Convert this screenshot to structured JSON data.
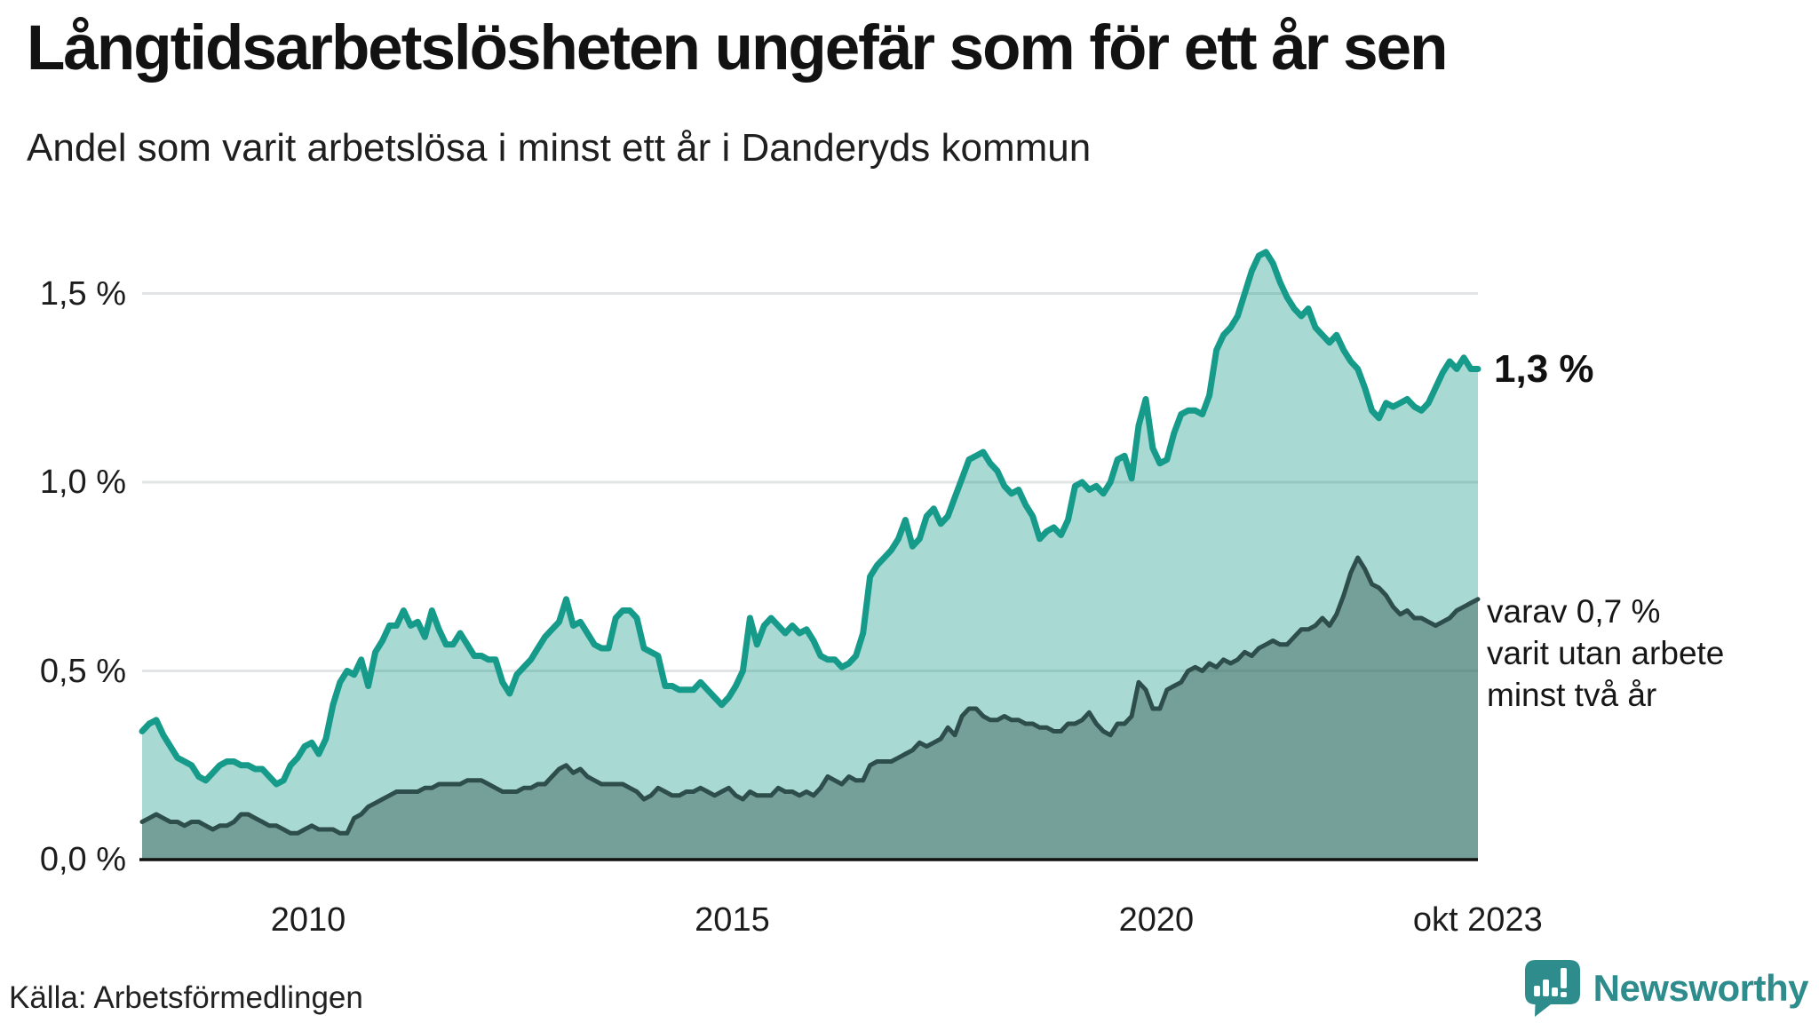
{
  "header": {
    "title": "Långtidsarbetslösheten ungefär som för ett år sen",
    "subtitle": "Andel som varit arbetslösa i minst ett år i Danderyds kommun"
  },
  "annotations": {
    "end_value_primary": "1,3 %",
    "secondary_lines": [
      "varav 0,7 %",
      "varit utan arbete",
      "minst två år"
    ]
  },
  "footer": {
    "source": "Källa: Arbetsförmedlingen"
  },
  "brand": {
    "name": "Newsworthy",
    "color": "#2E8C8C",
    "icon": "speech-bubble-bar-chart-icon"
  },
  "colors": {
    "line_one_year": "#169B8B",
    "fill_one_year": "rgba(26,154,138,0.38)",
    "line_two_year": "#2E4E4B",
    "fill_two_year": "rgba(47,79,75,0.42)",
    "gridline": "#E2E4E6",
    "axis": "#111111",
    "text": "#1c1c1c"
  },
  "chart_data": {
    "type": "area",
    "title": "Långtidsarbetslösheten ungefär som för ett år sen",
    "subtitle": "Andel som varit arbetslösa i minst ett år i Danderyds kommun",
    "unit": "%",
    "x_start": "2008-01",
    "x_end": "2023-10",
    "points_per_year": 12,
    "ylim": [
      0,
      1.7
    ],
    "grid_values": [
      0.5,
      1.0,
      1.5
    ],
    "y_ticks": [
      {
        "label": "1,5 %",
        "value": 1.5
      },
      {
        "label": "1,0 %",
        "value": 1.0
      },
      {
        "label": "0,5 %",
        "value": 0.5
      },
      {
        "label": "0,0 %",
        "value": 0.0
      }
    ],
    "x_ticks": [
      {
        "label": "2010",
        "year": 2010.0
      },
      {
        "label": "2015",
        "year": 2015.0
      },
      {
        "label": "2020",
        "year": 2020.0
      },
      {
        "label": "okt 2023",
        "year": 2023.79
      }
    ],
    "series": [
      {
        "name": "Arbetslösa minst ett år",
        "end_label": "1,3 %",
        "end_value": 1.3,
        "values": [
          0.34,
          0.36,
          0.37,
          0.33,
          0.3,
          0.27,
          0.26,
          0.25,
          0.22,
          0.21,
          0.23,
          0.25,
          0.26,
          0.26,
          0.25,
          0.25,
          0.24,
          0.24,
          0.22,
          0.2,
          0.21,
          0.25,
          0.27,
          0.3,
          0.31,
          0.28,
          0.32,
          0.41,
          0.47,
          0.5,
          0.49,
          0.53,
          0.46,
          0.55,
          0.58,
          0.62,
          0.62,
          0.66,
          0.62,
          0.63,
          0.59,
          0.66,
          0.61,
          0.57,
          0.57,
          0.6,
          0.57,
          0.54,
          0.54,
          0.53,
          0.53,
          0.47,
          0.44,
          0.49,
          0.51,
          0.53,
          0.56,
          0.59,
          0.61,
          0.63,
          0.69,
          0.62,
          0.63,
          0.6,
          0.57,
          0.56,
          0.56,
          0.64,
          0.66,
          0.66,
          0.64,
          0.56,
          0.55,
          0.54,
          0.46,
          0.46,
          0.45,
          0.45,
          0.45,
          0.47,
          0.45,
          0.43,
          0.41,
          0.43,
          0.46,
          0.5,
          0.64,
          0.57,
          0.62,
          0.64,
          0.62,
          0.6,
          0.62,
          0.6,
          0.61,
          0.58,
          0.54,
          0.53,
          0.53,
          0.51,
          0.52,
          0.54,
          0.6,
          0.75,
          0.78,
          0.8,
          0.82,
          0.85,
          0.9,
          0.83,
          0.85,
          0.91,
          0.93,
          0.89,
          0.91,
          0.96,
          1.01,
          1.06,
          1.07,
          1.08,
          1.05,
          1.03,
          0.99,
          0.97,
          0.98,
          0.94,
          0.91,
          0.85,
          0.87,
          0.88,
          0.86,
          0.9,
          0.99,
          1.0,
          0.98,
          0.99,
          0.97,
          1.0,
          1.06,
          1.07,
          1.01,
          1.15,
          1.22,
          1.09,
          1.05,
          1.06,
          1.13,
          1.18,
          1.19,
          1.19,
          1.18,
          1.23,
          1.35,
          1.39,
          1.41,
          1.44,
          1.5,
          1.56,
          1.6,
          1.61,
          1.58,
          1.53,
          1.49,
          1.46,
          1.44,
          1.46,
          1.41,
          1.39,
          1.37,
          1.39,
          1.35,
          1.32,
          1.3,
          1.25,
          1.19,
          1.17,
          1.21,
          1.2,
          1.21,
          1.22,
          1.2,
          1.19,
          1.21,
          1.25,
          1.29,
          1.32,
          1.3,
          1.33,
          1.3,
          1.3
        ]
      },
      {
        "name": "Varav utan arbete minst två år",
        "end_label": "varav 0,7 % varit utan arbete minst två år",
        "end_value": 0.7,
        "values": [
          0.1,
          0.11,
          0.12,
          0.11,
          0.1,
          0.1,
          0.09,
          0.1,
          0.1,
          0.09,
          0.08,
          0.09,
          0.09,
          0.1,
          0.12,
          0.12,
          0.11,
          0.1,
          0.09,
          0.09,
          0.08,
          0.07,
          0.07,
          0.08,
          0.09,
          0.08,
          0.08,
          0.08,
          0.07,
          0.07,
          0.11,
          0.12,
          0.14,
          0.15,
          0.16,
          0.17,
          0.18,
          0.18,
          0.18,
          0.18,
          0.19,
          0.19,
          0.2,
          0.2,
          0.2,
          0.2,
          0.21,
          0.21,
          0.21,
          0.2,
          0.19,
          0.18,
          0.18,
          0.18,
          0.19,
          0.19,
          0.2,
          0.2,
          0.22,
          0.24,
          0.25,
          0.23,
          0.24,
          0.22,
          0.21,
          0.2,
          0.2,
          0.2,
          0.2,
          0.19,
          0.18,
          0.16,
          0.17,
          0.19,
          0.18,
          0.17,
          0.17,
          0.18,
          0.18,
          0.19,
          0.18,
          0.17,
          0.18,
          0.19,
          0.17,
          0.16,
          0.18,
          0.17,
          0.17,
          0.17,
          0.19,
          0.18,
          0.18,
          0.17,
          0.18,
          0.17,
          0.19,
          0.22,
          0.21,
          0.2,
          0.22,
          0.21,
          0.21,
          0.25,
          0.26,
          0.26,
          0.26,
          0.27,
          0.28,
          0.29,
          0.31,
          0.3,
          0.31,
          0.32,
          0.35,
          0.33,
          0.38,
          0.4,
          0.4,
          0.38,
          0.37,
          0.37,
          0.38,
          0.37,
          0.37,
          0.36,
          0.36,
          0.35,
          0.35,
          0.34,
          0.34,
          0.36,
          0.36,
          0.37,
          0.39,
          0.36,
          0.34,
          0.33,
          0.36,
          0.36,
          0.38,
          0.47,
          0.45,
          0.4,
          0.4,
          0.45,
          0.46,
          0.47,
          0.5,
          0.51,
          0.5,
          0.52,
          0.51,
          0.53,
          0.52,
          0.53,
          0.55,
          0.54,
          0.56,
          0.57,
          0.58,
          0.57,
          0.57,
          0.59,
          0.61,
          0.61,
          0.62,
          0.64,
          0.62,
          0.65,
          0.7,
          0.76,
          0.8,
          0.77,
          0.73,
          0.72,
          0.7,
          0.67,
          0.65,
          0.66,
          0.64,
          0.64,
          0.63,
          0.62,
          0.63,
          0.64,
          0.66,
          0.67,
          0.68,
          0.69
        ]
      }
    ]
  }
}
